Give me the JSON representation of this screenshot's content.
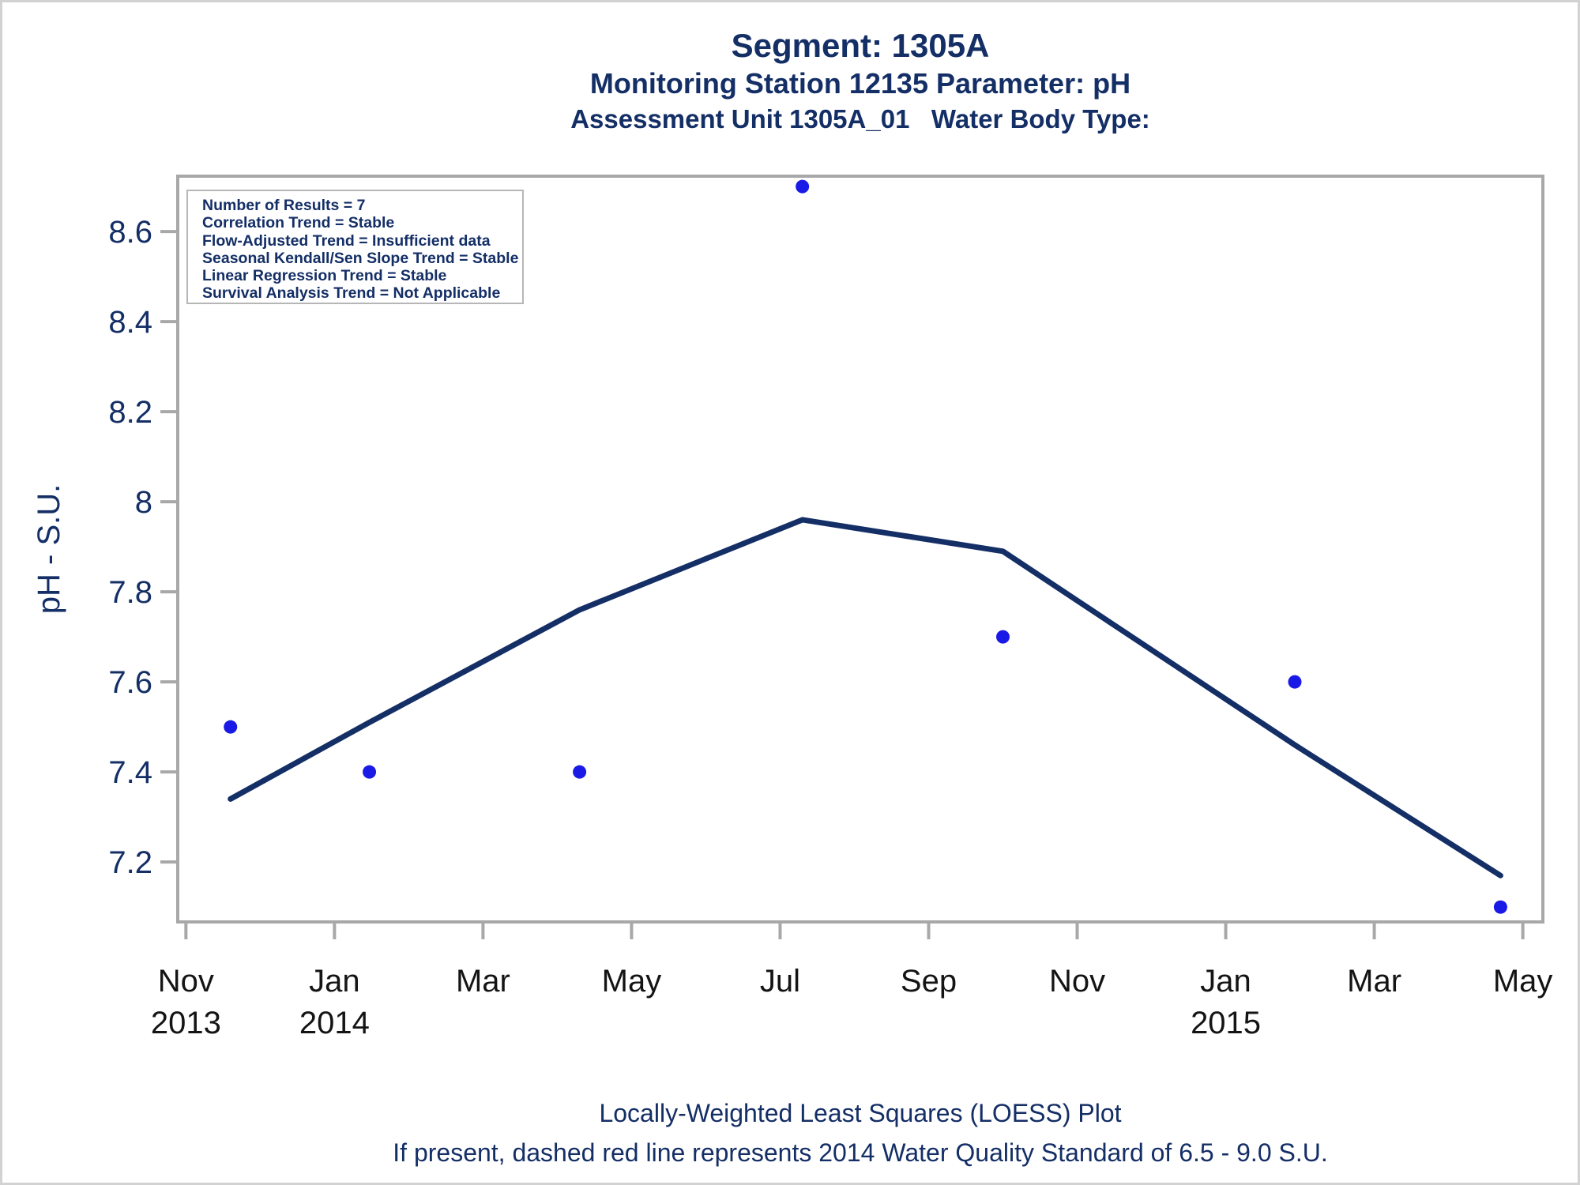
{
  "titles": {
    "line1": "Segment: 1305A",
    "line2": "Monitoring Station 12135 Parameter: pH",
    "line3": "Assessment Unit 1305A_01   Water Body Type:"
  },
  "stats_box": {
    "lines": [
      "Number of Results = 7",
      "Correlation Trend = Stable",
      "Flow-Adjusted Trend = Insufficient data",
      "Seasonal Kendall/Sen Slope Trend = Stable",
      "Linear Regression Trend = Stable",
      "Survival Analysis Trend = Not Applicable"
    ]
  },
  "footnotes": {
    "line1": "Locally-Weighted Least Squares (LOESS) Plot",
    "line2": "If present, dashed red line represents 2014 Water Quality Standard of 6.5 - 9.0 S.U."
  },
  "colors": {
    "navy_text": "#142e66",
    "loess_line": "#142e66",
    "dot_blue": "#1a1ae6",
    "axis_gray": "#a8a8a8",
    "x_label_black": "#141414",
    "box_border_gray": "#b6b6b6",
    "page_border": "#d2d2d2"
  },
  "chart_data": {
    "type": "scatter",
    "title": "Segment: 1305A",
    "subtitle": "Monitoring Station 12135 Parameter: pH",
    "xlabel": "",
    "ylabel": "pH - S.U.",
    "grid": false,
    "legend": "none",
    "x_axis": {
      "kind": "time",
      "month_origin": "2013-11",
      "range_months": [
        -0.11,
        18.27
      ],
      "ticks": [
        {
          "month_offset": 0,
          "label": "Nov",
          "year_label": "2013"
        },
        {
          "month_offset": 2,
          "label": "Jan",
          "year_label": "2014"
        },
        {
          "month_offset": 4,
          "label": "Mar"
        },
        {
          "month_offset": 6,
          "label": "May"
        },
        {
          "month_offset": 8,
          "label": "Jul"
        },
        {
          "month_offset": 10,
          "label": "Sep"
        },
        {
          "month_offset": 12,
          "label": "Nov"
        },
        {
          "month_offset": 14,
          "label": "Jan",
          "year_label": "2015"
        },
        {
          "month_offset": 16,
          "label": "Mar"
        },
        {
          "month_offset": 18,
          "label": "May"
        }
      ]
    },
    "y_axis": {
      "range": [
        7.067,
        8.723
      ],
      "ticks": [
        7.2,
        7.4,
        7.6,
        7.8,
        8,
        8.2,
        8.4,
        8.6
      ]
    },
    "series": [
      {
        "name": "pH results",
        "type": "scatter",
        "color": "#1a1ae6",
        "points": [
          {
            "approx_date": "2013-11-19",
            "month_offset": 0.6,
            "ph": 7.5
          },
          {
            "approx_date": "2014-01-15",
            "month_offset": 2.47,
            "ph": 7.4
          },
          {
            "approx_date": "2014-04-10",
            "month_offset": 5.3,
            "ph": 7.4
          },
          {
            "approx_date": "2014-07-10",
            "month_offset": 8.3,
            "ph": 8.7
          },
          {
            "approx_date": "2014-10-01",
            "month_offset": 11.0,
            "ph": 7.7
          },
          {
            "approx_date": "2015-01-29",
            "month_offset": 14.93,
            "ph": 7.6
          },
          {
            "approx_date": "2015-04-22",
            "month_offset": 17.7,
            "ph": 7.1
          }
        ]
      },
      {
        "name": "LOESS fit",
        "type": "line",
        "color": "#142e66",
        "points": [
          {
            "month_offset": 0.6,
            "ph": 7.34
          },
          {
            "month_offset": 2.47,
            "ph": 7.51
          },
          {
            "month_offset": 5.3,
            "ph": 7.76
          },
          {
            "month_offset": 8.3,
            "ph": 7.96
          },
          {
            "month_offset": 11.0,
            "ph": 7.89
          },
          {
            "month_offset": 14.93,
            "ph": 7.46
          },
          {
            "month_offset": 17.7,
            "ph": 7.17
          }
        ]
      }
    ]
  }
}
